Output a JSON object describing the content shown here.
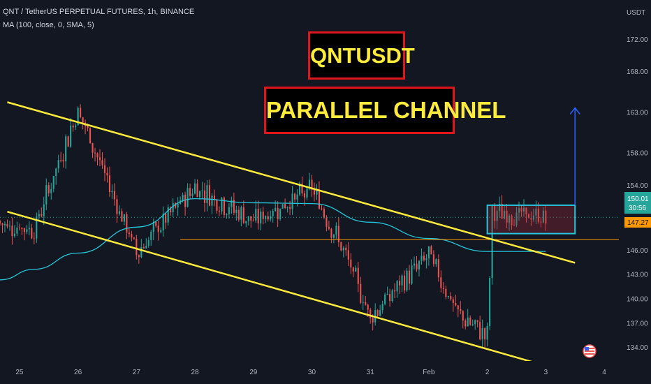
{
  "header": {
    "title": "QNT / TetherUS PERPETUAL FUTURES, 1h, BINANCE",
    "indicator": "MA (100, close, 0, SMA, 5)"
  },
  "annotations": {
    "symbol_label": "QNTUSDT",
    "pattern_label": "PARALLEL CHANNEL"
  },
  "price_axis": {
    "unit": "USDT",
    "ticks": [
      "172.00",
      "168.00",
      "163.00",
      "158.00",
      "154.00",
      "146.00",
      "143.00",
      "140.00",
      "137.00",
      "134.00"
    ]
  },
  "time_axis": {
    "ticks": [
      "25",
      "26",
      "27",
      "28",
      "29",
      "30",
      "31",
      "Feb",
      "2",
      "3",
      "4"
    ]
  },
  "price_tags": {
    "last_price": "150.01",
    "countdown": "30:56",
    "level": "147.27"
  },
  "colors": {
    "background": "#131722",
    "up_candle": "#26a69a",
    "down_candle": "#ef5350",
    "ma_line": "#26c6da",
    "channel_lines": "#ffeb3b",
    "level_line": "#ff9800",
    "box_stroke": "#26c6da",
    "target_arrow": "#2962ff",
    "label_text": "#ffeb3b",
    "label_border": "#e0161b"
  },
  "chart_data": {
    "type": "candlestick",
    "interval": "1h",
    "series": [
      {
        "name": "QNT / TetherUS PERPETUAL FUTURES"
      },
      {
        "name": "MA (100, close, 0, SMA, 5)"
      }
    ],
    "channel_upper": [
      {
        "date": "Jan 24 19:00",
        "price": 164.2
      },
      {
        "date": "Feb 3 12:00",
        "price": 144.4
      }
    ],
    "channel_lower": [
      {
        "date": "Jan 24 19:00",
        "price": 150.7
      },
      {
        "date": "Feb 3 00:00",
        "price": 131.7
      }
    ],
    "horizontal_level": 147.27,
    "ylim": [
      132.3,
      173.7
    ],
    "xlim": [
      "Jan 24 16:00",
      "Feb 4 06:00"
    ],
    "grid": false,
    "key_points": [
      {
        "date": "Jan 25 06:00",
        "price": 148.5
      },
      {
        "date": "Jan 26 00:00",
        "price": 163.3
      },
      {
        "date": "Jan 27 00:00",
        "price": 145.7
      },
      {
        "date": "Jan 28 00:00",
        "price": 153.8
      },
      {
        "date": "Jan 29 00:00",
        "price": 149.5
      },
      {
        "date": "Jan 30 00:00",
        "price": 153.5
      },
      {
        "date": "Jan 30 12:00",
        "price": 146.5
      },
      {
        "date": "Jan 31 00:00",
        "price": 137.8
      },
      {
        "date": "Feb 1 00:00",
        "price": 145.4
      },
      {
        "date": "Feb 1 12:00",
        "price": 138.0
      },
      {
        "date": "Feb 2 00:00",
        "price": 135.4
      },
      {
        "date": "Feb 2 02:00",
        "price": 150.5
      },
      {
        "date": "Feb 3 00:00",
        "price": 150.0
      }
    ],
    "ma_points": [
      {
        "date": "Jan 24 16:00",
        "price": 142.3
      },
      {
        "date": "Jan 25 06:00",
        "price": 143.6
      },
      {
        "date": "Jan 26 00:00",
        "price": 145.6
      },
      {
        "date": "Jan 27 00:00",
        "price": 148.8
      },
      {
        "date": "Jan 28 00:00",
        "price": 152.3
      },
      {
        "date": "Jan 29 00:00",
        "price": 151.8
      },
      {
        "date": "Jan 30 00:00",
        "price": 151.7
      },
      {
        "date": "Jan 31 00:00",
        "price": 149.4
      },
      {
        "date": "Feb 1 00:00",
        "price": 147.4
      },
      {
        "date": "Feb 2 00:00",
        "price": 145.8
      },
      {
        "date": "Feb 3 00:00",
        "price": 145.8
      }
    ],
    "consolidation_box": {
      "from": "Feb 2 00:00",
      "to": "Feb 3 12:00",
      "high": 151.5,
      "low": 148.0
    },
    "target_arrow": {
      "date": "Feb 3 12:00",
      "from_price": 151.5,
      "to_price": 163.5
    }
  }
}
